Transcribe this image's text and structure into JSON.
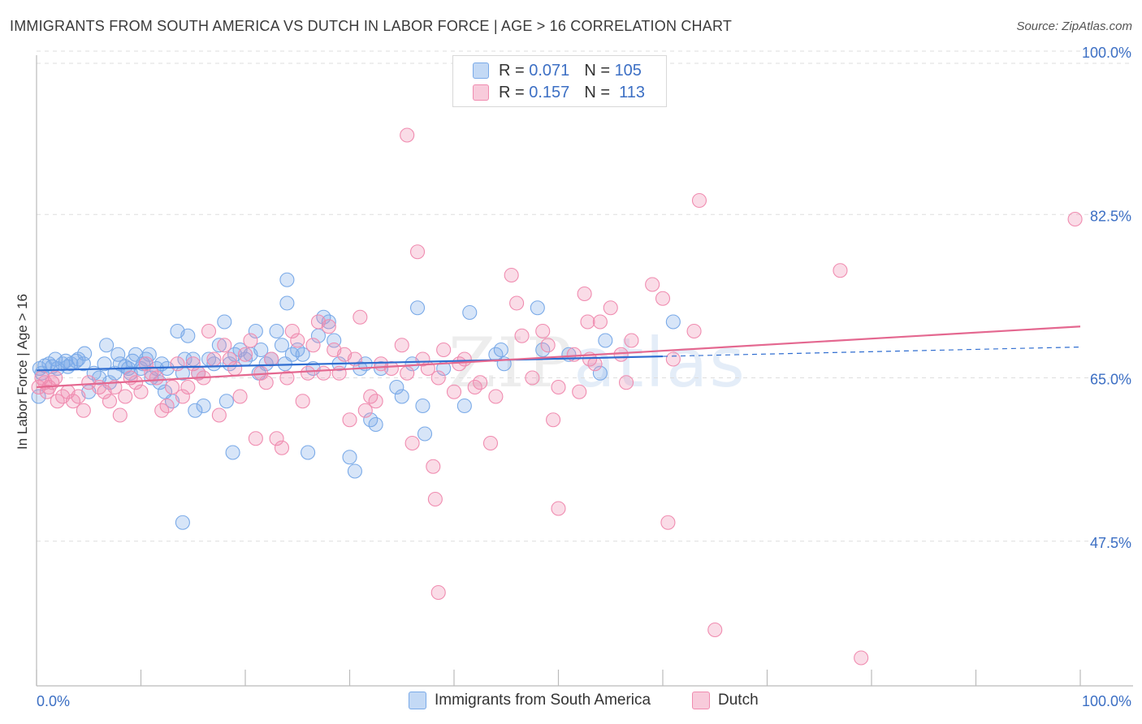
{
  "title": "IMMIGRANTS FROM SOUTH AMERICA VS DUTCH IN LABOR FORCE | AGE > 16 CORRELATION CHART",
  "source": "Source: ZipAtlas.com",
  "watermark": {
    "zip": "ZIP",
    "atlas": "atlas"
  },
  "legend_stats": [
    {
      "r_label": "R =",
      "r_value": "0.071",
      "n_label": "N =",
      "n_value": "105",
      "color": "#7aaae8"
    },
    {
      "r_label": "R =",
      "r_value": "0.157",
      "n_label": "N =",
      "n_value": "113",
      "color": "#f08cb0"
    }
  ],
  "chart_data": {
    "type": "scatter",
    "title": "IMMIGRANTS FROM SOUTH AMERICA VS DUTCH IN LABOR FORCE | AGE > 16 CORRELATION CHART",
    "xlabel": "",
    "ylabel": "In Labor Force | Age > 16",
    "xlim": [
      0,
      100
    ],
    "ylim": [
      32,
      102
    ],
    "x_tick_labels": [
      "0.0%",
      "100.0%"
    ],
    "y_ticks": [
      47.5,
      65.0,
      82.5,
      100.0
    ],
    "y_tick_labels": [
      "47.5%",
      "65.0%",
      "82.5%",
      "100.0%"
    ],
    "grid": true,
    "legend_position": "bottom",
    "series": [
      {
        "name": "Immigrants from South America",
        "color": "#7aaae8",
        "line_color": "#2f6dd0",
        "trend": {
          "x0": 0,
          "y0": 65.8,
          "x1": 60,
          "y1": 67.3,
          "dashed_to_x": 100,
          "dashed_to_y": 68.3
        },
        "points": [
          [
            0.2,
            63.0
          ],
          [
            0.3,
            66.0
          ],
          [
            0.5,
            65.5
          ],
          [
            0.8,
            66.3
          ],
          [
            1.2,
            66.5
          ],
          [
            1.5,
            66.2
          ],
          [
            1.8,
            67.0
          ],
          [
            2.0,
            66.0
          ],
          [
            2.5,
            66.5
          ],
          [
            2.8,
            66.8
          ],
          [
            3.0,
            66.2
          ],
          [
            3.3,
            66.5
          ],
          [
            3.8,
            66.8
          ],
          [
            4.0,
            67.0
          ],
          [
            4.5,
            66.5
          ],
          [
            4.6,
            67.6
          ],
          [
            5.0,
            63.5
          ],
          [
            5.5,
            65.5
          ],
          [
            6.0,
            65.0
          ],
          [
            6.5,
            66.5
          ],
          [
            6.7,
            68.5
          ],
          [
            7.0,
            64.5
          ],
          [
            7.5,
            65.5
          ],
          [
            7.8,
            67.5
          ],
          [
            8.0,
            66.5
          ],
          [
            8.5,
            66.2
          ],
          [
            8.8,
            66.0
          ],
          [
            9.0,
            65.5
          ],
          [
            9.2,
            66.8
          ],
          [
            9.5,
            67.5
          ],
          [
            10.0,
            66.0
          ],
          [
            10.2,
            66.5
          ],
          [
            10.5,
            67.0
          ],
          [
            10.8,
            67.5
          ],
          [
            11.0,
            65.0
          ],
          [
            11.5,
            66.0
          ],
          [
            11.8,
            64.5
          ],
          [
            12.0,
            66.5
          ],
          [
            12.3,
            63.5
          ],
          [
            12.5,
            66.0
          ],
          [
            13.0,
            62.5
          ],
          [
            13.5,
            70.0
          ],
          [
            14.0,
            65.5
          ],
          [
            14.2,
            67.0
          ],
          [
            14.5,
            69.5
          ],
          [
            15.0,
            67.0
          ],
          [
            15.2,
            61.5
          ],
          [
            15.5,
            65.5
          ],
          [
            16.0,
            62.0
          ],
          [
            16.5,
            67.0
          ],
          [
            17.0,
            66.5
          ],
          [
            17.5,
            68.5
          ],
          [
            18.0,
            71.0
          ],
          [
            18.2,
            62.5
          ],
          [
            18.5,
            66.5
          ],
          [
            18.8,
            57.0
          ],
          [
            19.0,
            67.5
          ],
          [
            19.5,
            68.0
          ],
          [
            20.0,
            67.0
          ],
          [
            20.5,
            67.5
          ],
          [
            21.0,
            70.0
          ],
          [
            21.3,
            65.5
          ],
          [
            21.5,
            68.0
          ],
          [
            22.0,
            66.5
          ],
          [
            22.5,
            67.0
          ],
          [
            23.0,
            70.0
          ],
          [
            23.5,
            68.5
          ],
          [
            23.8,
            66.5
          ],
          [
            24.0,
            73.0
          ],
          [
            24.5,
            67.5
          ],
          [
            25.0,
            68.0
          ],
          [
            25.5,
            67.5
          ],
          [
            26.0,
            57.0
          ],
          [
            26.5,
            66.0
          ],
          [
            27.0,
            69.5
          ],
          [
            27.5,
            71.5
          ],
          [
            28.0,
            71.0
          ],
          [
            28.5,
            69.0
          ],
          [
            29.0,
            66.5
          ],
          [
            30.0,
            56.5
          ],
          [
            30.5,
            55.0
          ],
          [
            31.0,
            66.0
          ],
          [
            31.5,
            66.5
          ],
          [
            32.0,
            60.5
          ],
          [
            32.5,
            60.0
          ],
          [
            33.0,
            66.0
          ],
          [
            34.5,
            64.0
          ],
          [
            35.0,
            63.0
          ],
          [
            36.0,
            66.5
          ],
          [
            36.5,
            72.5
          ],
          [
            37.0,
            62.0
          ],
          [
            37.2,
            59.0
          ],
          [
            39.0,
            66.0
          ],
          [
            41.0,
            62.0
          ],
          [
            41.5,
            72.0
          ],
          [
            44.0,
            67.5
          ],
          [
            44.5,
            68.0
          ],
          [
            44.8,
            66.5
          ],
          [
            48.0,
            72.5
          ],
          [
            48.5,
            68.0
          ],
          [
            51.0,
            67.5
          ],
          [
            54.0,
            65.5
          ],
          [
            54.5,
            69.0
          ],
          [
            61.0,
            71.0
          ],
          [
            14.0,
            49.5
          ],
          [
            24.0,
            75.5
          ]
        ]
      },
      {
        "name": "Dutch",
        "color": "#f08cb0",
        "line_color": "#e46890",
        "trend": {
          "x0": 0,
          "y0": 64.0,
          "x1": 100,
          "y1": 70.5
        },
        "points": [
          [
            0.2,
            64.0
          ],
          [
            0.5,
            65.0
          ],
          [
            0.8,
            64.5
          ],
          [
            1.0,
            63.5
          ],
          [
            1.2,
            64.0
          ],
          [
            1.5,
            64.5
          ],
          [
            1.8,
            65.0
          ],
          [
            2.0,
            62.5
          ],
          [
            2.5,
            63.0
          ],
          [
            3.0,
            63.5
          ],
          [
            3.5,
            62.5
          ],
          [
            4.0,
            63.0
          ],
          [
            4.5,
            61.5
          ],
          [
            5.0,
            64.5
          ],
          [
            6.0,
            64.0
          ],
          [
            6.5,
            63.5
          ],
          [
            7.0,
            62.5
          ],
          [
            7.5,
            64.0
          ],
          [
            8.0,
            61.0
          ],
          [
            8.5,
            63.0
          ],
          [
            9.0,
            65.0
          ],
          [
            9.5,
            64.5
          ],
          [
            10.0,
            63.5
          ],
          [
            10.5,
            66.5
          ],
          [
            11.0,
            65.5
          ],
          [
            11.5,
            65.0
          ],
          [
            12.0,
            61.5
          ],
          [
            12.5,
            62.0
          ],
          [
            13.0,
            64.0
          ],
          [
            13.5,
            66.5
          ],
          [
            14.0,
            63.0
          ],
          [
            14.5,
            64.0
          ],
          [
            15.0,
            66.5
          ],
          [
            15.5,
            65.5
          ],
          [
            16.0,
            65.0
          ],
          [
            16.5,
            70.0
          ],
          [
            17.0,
            67.0
          ],
          [
            17.5,
            61.0
          ],
          [
            18.0,
            68.5
          ],
          [
            18.5,
            67.0
          ],
          [
            19.0,
            66.0
          ],
          [
            19.5,
            63.0
          ],
          [
            20.0,
            67.5
          ],
          [
            20.5,
            69.0
          ],
          [
            21.0,
            58.5
          ],
          [
            21.5,
            65.5
          ],
          [
            22.0,
            64.5
          ],
          [
            22.5,
            67.0
          ],
          [
            23.0,
            58.5
          ],
          [
            23.5,
            57.5
          ],
          [
            24.0,
            65.0
          ],
          [
            24.5,
            70.0
          ],
          [
            25.0,
            69.0
          ],
          [
            25.5,
            62.5
          ],
          [
            26.0,
            65.5
          ],
          [
            26.5,
            68.5
          ],
          [
            27.0,
            71.0
          ],
          [
            27.5,
            65.5
          ],
          [
            28.0,
            70.5
          ],
          [
            28.5,
            68.0
          ],
          [
            29.0,
            65.5
          ],
          [
            29.5,
            67.5
          ],
          [
            30.0,
            60.5
          ],
          [
            30.5,
            67.0
          ],
          [
            31.0,
            71.5
          ],
          [
            31.5,
            61.5
          ],
          [
            32.0,
            63.0
          ],
          [
            32.5,
            62.5
          ],
          [
            33.0,
            66.5
          ],
          [
            34.0,
            66.0
          ],
          [
            35.0,
            68.5
          ],
          [
            35.5,
            65.5
          ],
          [
            36.0,
            58.0
          ],
          [
            36.5,
            78.5
          ],
          [
            37.0,
            67.0
          ],
          [
            37.5,
            66.0
          ],
          [
            38.0,
            55.5
          ],
          [
            38.2,
            52.0
          ],
          [
            38.5,
            65.0
          ],
          [
            39.0,
            68.0
          ],
          [
            40.0,
            63.5
          ],
          [
            40.5,
            66.5
          ],
          [
            41.0,
            67.0
          ],
          [
            42.0,
            64.0
          ],
          [
            42.5,
            64.5
          ],
          [
            43.5,
            58.0
          ],
          [
            44.0,
            63.0
          ],
          [
            45.5,
            76.0
          ],
          [
            46.0,
            73.0
          ],
          [
            46.5,
            69.5
          ],
          [
            47.5,
            65.0
          ],
          [
            48.5,
            70.0
          ],
          [
            49.0,
            68.5
          ],
          [
            49.5,
            60.5
          ],
          [
            50.0,
            64.0
          ],
          [
            51.5,
            67.5
          ],
          [
            52.0,
            63.5
          ],
          [
            52.5,
            74.0
          ],
          [
            52.8,
            71.0
          ],
          [
            53.0,
            67.0
          ],
          [
            53.5,
            66.5
          ],
          [
            54.0,
            71.0
          ],
          [
            55.0,
            72.5
          ],
          [
            56.0,
            67.5
          ],
          [
            57.0,
            69.0
          ],
          [
            59.0,
            75.0
          ],
          [
            60.0,
            73.5
          ],
          [
            61.0,
            67.0
          ],
          [
            63.0,
            70.0
          ],
          [
            65.0,
            38.0
          ],
          [
            60.5,
            49.5
          ],
          [
            50.0,
            51.0
          ],
          [
            38.5,
            42.0
          ],
          [
            35.5,
            91.0
          ],
          [
            63.5,
            84.0
          ],
          [
            77.0,
            76.5
          ],
          [
            99.5,
            82.0
          ],
          [
            79.0,
            35.0
          ],
          [
            56.5,
            64.5
          ]
        ]
      }
    ]
  }
}
